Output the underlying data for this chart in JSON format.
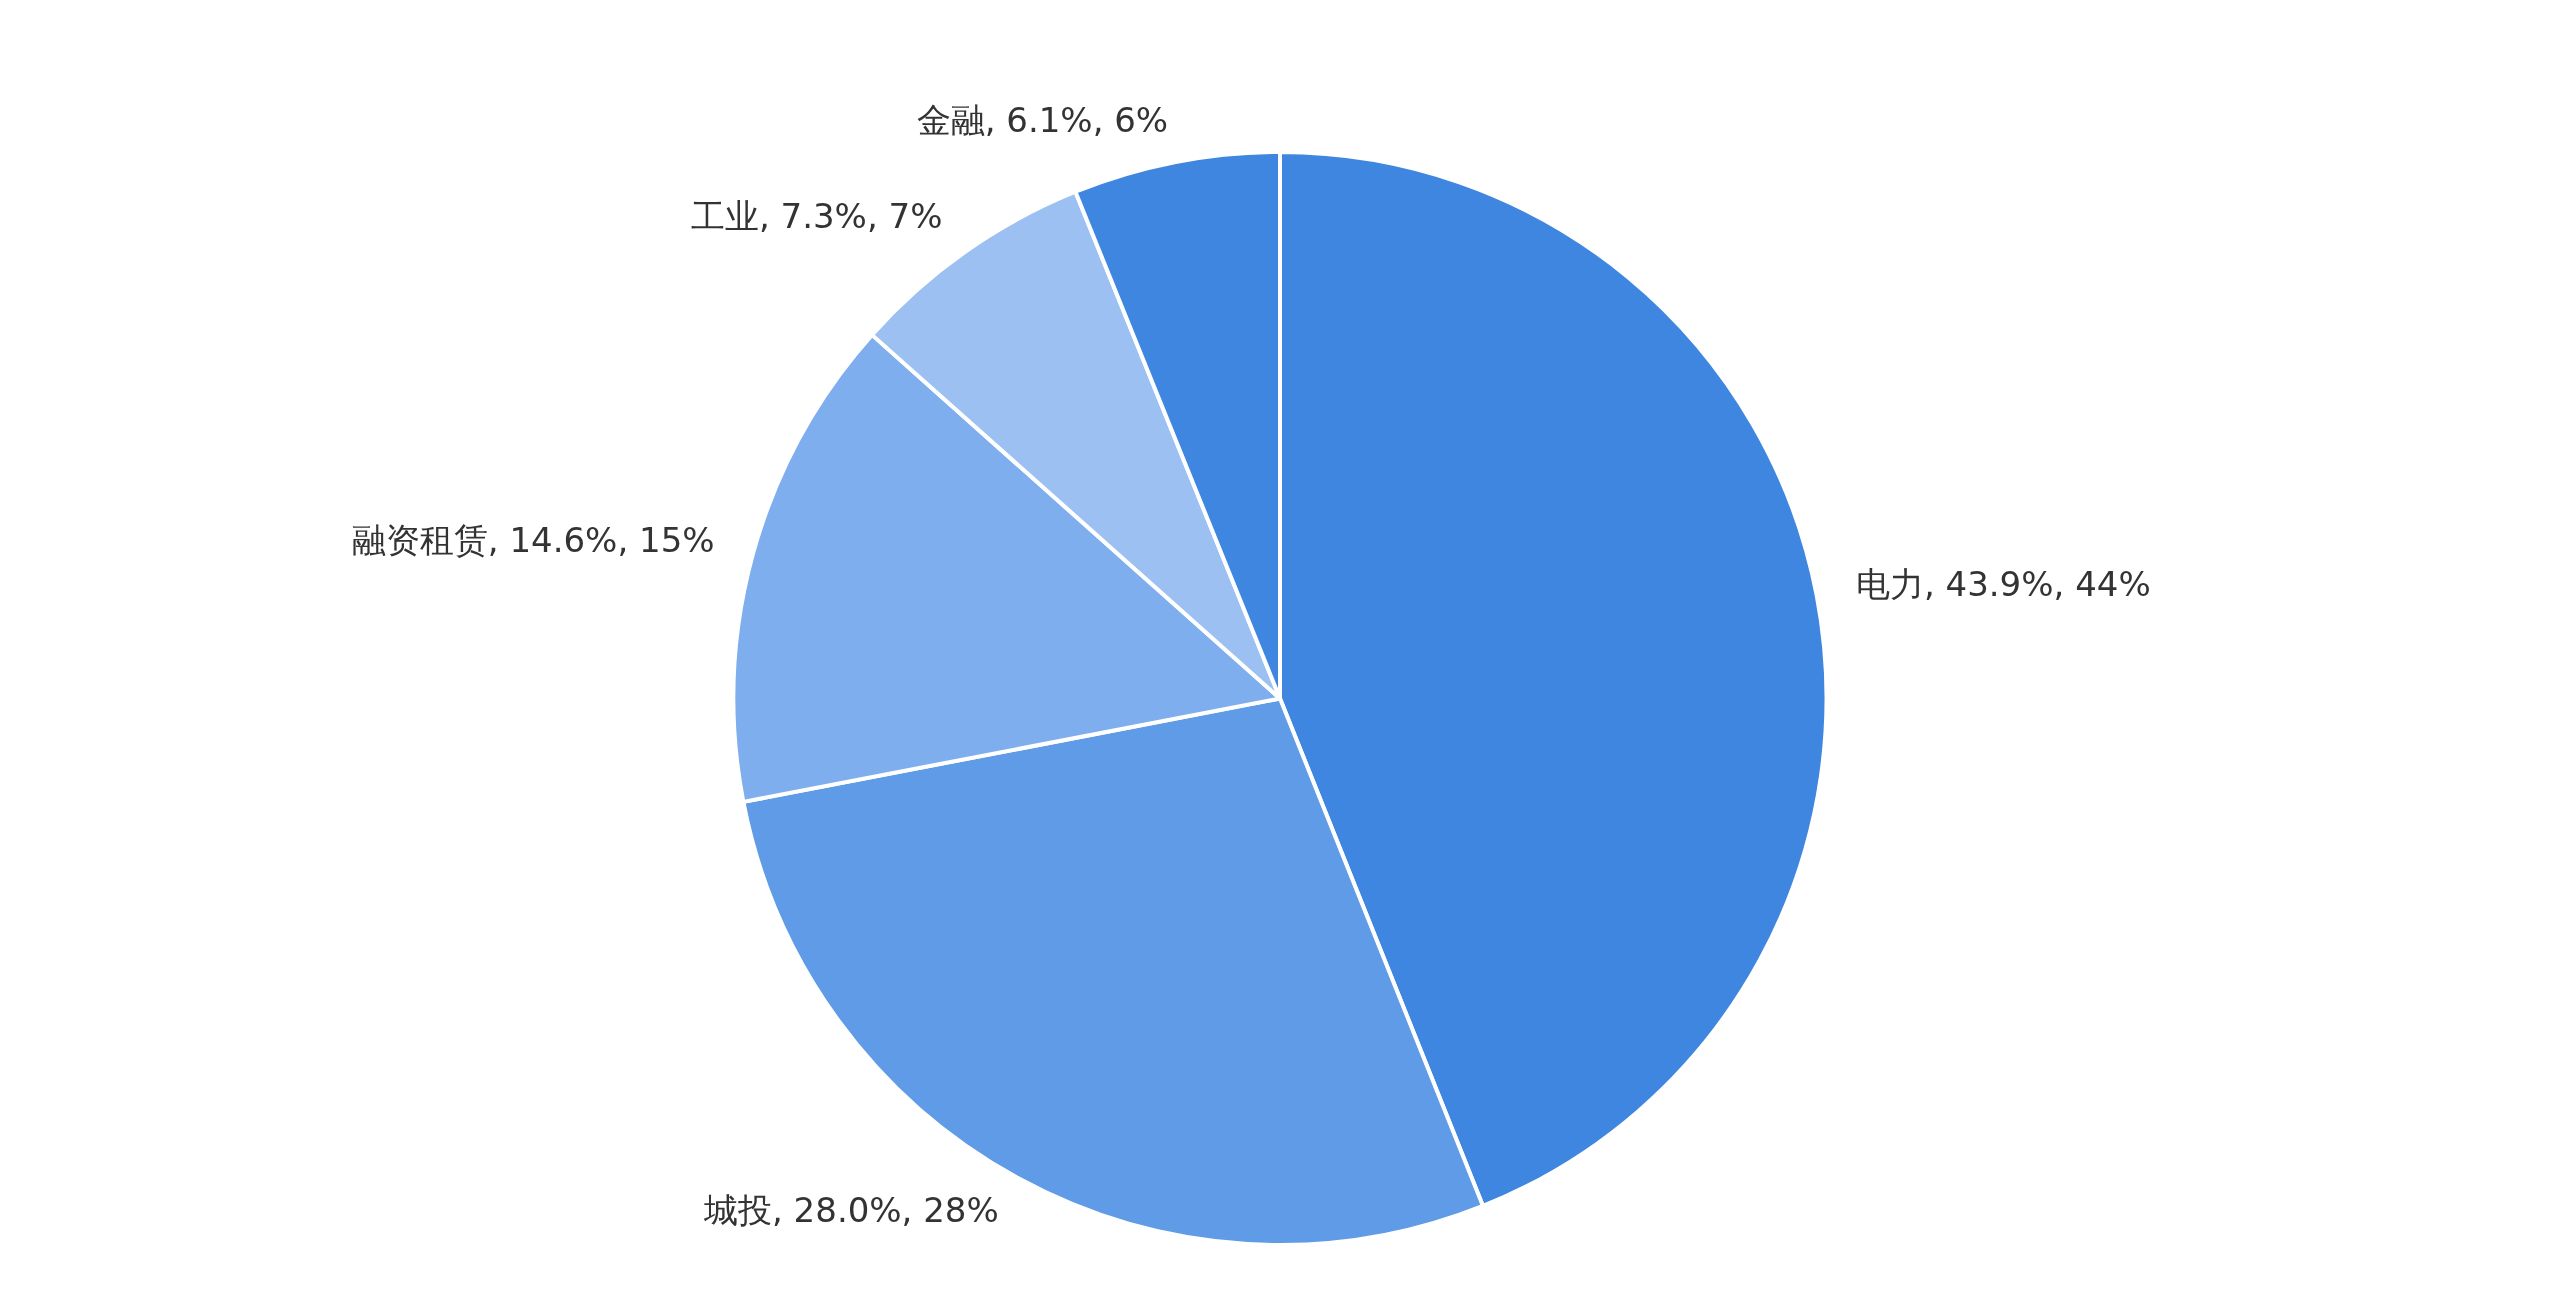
{
  "chart_data": {
    "type": "pie",
    "categories": [
      "电力",
      "城投",
      "融资租赁",
      "工业",
      "金融"
    ],
    "values": [
      43.9,
      28.0,
      14.6,
      7.3,
      6.1
    ],
    "value_labels": [
      "43.9%, 44%",
      "28.0%, 28%",
      "14.6%, 15%",
      "7.3%, 7%",
      "6.1%, 6%"
    ],
    "colors": [
      "#3f86e0",
      "#5f9be6",
      "#7eaeed",
      "#9cc0f2",
      "#3f86e0"
    ],
    "legend": false
  }
}
